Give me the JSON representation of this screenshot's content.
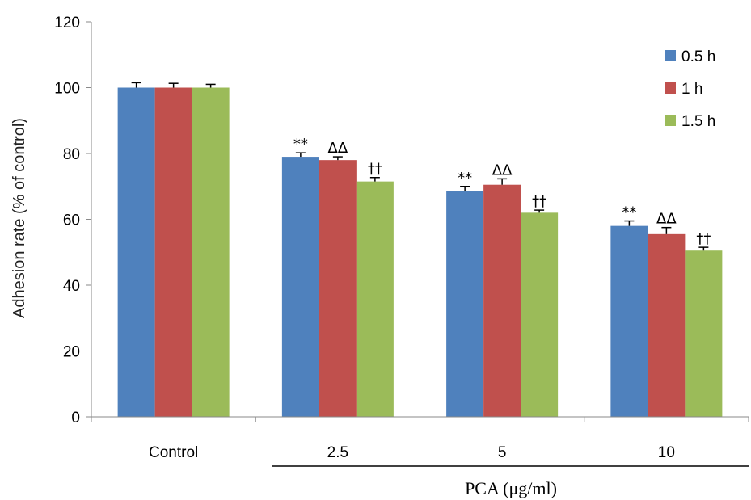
{
  "chart_data": {
    "type": "bar",
    "title": "",
    "xlabel": "PCA (μg/ml)",
    "ylabel": "Adhesion rate (% of control)",
    "ylim": [
      0,
      120
    ],
    "yticks": [
      "0",
      "20",
      "40",
      "60",
      "80",
      "100",
      "120"
    ],
    "categories": [
      "Control",
      "2.5",
      "5",
      "10"
    ],
    "grid": false,
    "legend_position": "top-right",
    "series": [
      {
        "name": "0.5 h",
        "color": "#4F81BD",
        "values": [
          100,
          79,
          68.5,
          58
        ],
        "errors": [
          1.5,
          1.2,
          1.5,
          1.5
        ],
        "annotations": [
          "",
          "**",
          "**",
          "**"
        ]
      },
      {
        "name": "1 h",
        "color": "#C0504D",
        "values": [
          100,
          78,
          70.5,
          55.5
        ],
        "errors": [
          1.3,
          1.0,
          1.8,
          2.0
        ],
        "annotations": [
          "",
          "ΔΔ",
          "ΔΔ",
          "ΔΔ"
        ]
      },
      {
        "name": "1.5 h",
        "color": "#9BBB59",
        "values": [
          100,
          71.5,
          62,
          50.5
        ],
        "errors": [
          1.0,
          1.2,
          0.8,
          1.0
        ],
        "annotations": [
          "",
          "††",
          "††",
          "††"
        ]
      }
    ]
  }
}
